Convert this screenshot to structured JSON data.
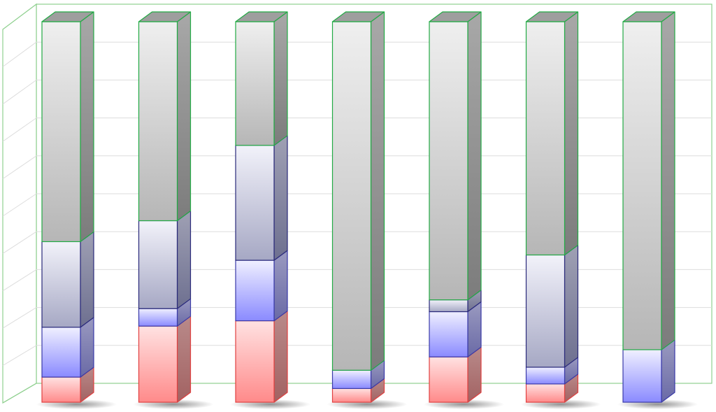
{
  "chart_data": {
    "type": "bar",
    "stacked": true,
    "three_d": true,
    "normalized_to_percent": true,
    "grid": true,
    "legend": "none",
    "categories": [
      "",
      "",
      "",
      "",
      "",
      "",
      ""
    ],
    "ylim": [
      0,
      100
    ],
    "series": [
      {
        "color": "#ff8080",
        "values": [
          6.6,
          20.0,
          21.4,
          3.6,
          11.9,
          4.8,
          0
        ]
      },
      {
        "color": "#8080ff",
        "values": [
          13.1,
          4.6,
          15.9,
          4.8,
          11.9,
          4.4,
          13.8
        ]
      },
      {
        "color": "#9aa0c4",
        "values": [
          22.5,
          23.1,
          30.2,
          0,
          3.1,
          29.5,
          0
        ]
      },
      {
        "color": "#b0b0b0",
        "values": [
          57.8,
          52.3,
          32.5,
          91.6,
          73.1,
          61.3,
          86.2
        ]
      }
    ],
    "colors": {
      "frame": "#8fd08f",
      "gridline": "#dddddd",
      "segment_edge": [
        "#e04040",
        "#3a3aa8",
        "#2a2a7a",
        "#22aa44"
      ]
    }
  }
}
